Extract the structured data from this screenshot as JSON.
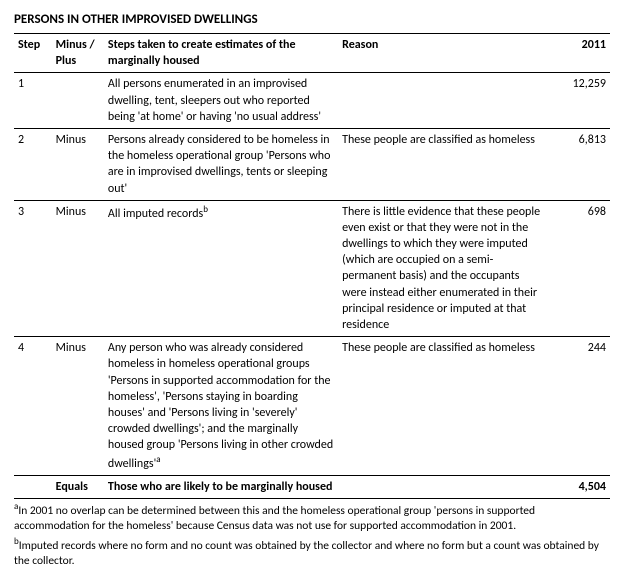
{
  "title": "PERSONS IN OTHER IMPROVISED DWELLINGS",
  "headers": {
    "step": "Step",
    "mp": "Minus / Plus",
    "steps_taken": "Steps taken to create estimates of the marginally housed",
    "reason": "Reason",
    "year": "2011"
  },
  "rows": [
    {
      "step": "1",
      "mp": "",
      "steps_taken": "All persons enumerated in an improvised dwelling, tent, sleepers out who reported being 'at home' or having 'no usual address'",
      "reason": "",
      "year": "12,259"
    },
    {
      "step": "2",
      "mp": "Minus",
      "steps_taken": "Persons already considered to be homeless in the homeless operational group 'Persons who are in improvised dwellings, tents or sleeping out'",
      "reason": "These people are classified as homeless",
      "year": "6,813"
    },
    {
      "step": "3",
      "mp": "Minus",
      "steps_taken": "All imputed records",
      "steps_taken_sup": "b",
      "reason": "There is little evidence that these people even exist or that they were not in the dwellings to which they were imputed (which are occupied on a semi-permanent basis) and the occupants were instead either enumerated in their principal residence or imputed at that residence",
      "year": "698"
    },
    {
      "step": "4",
      "mp": "Minus",
      "steps_taken": "Any person who was already considered homeless in homeless operational groups 'Persons in supported accommodation for the homeless', 'Persons staying in boarding houses' and 'Persons living in 'severely' crowded dwellings'; and the marginally housed group 'Persons living in other crowded dwellings'",
      "steps_taken_sup": "a",
      "reason": "These people are classified as homeless",
      "year": "244"
    }
  ],
  "total": {
    "mp": "Equals",
    "steps_taken": "Those who are likely to be marginally housed",
    "year": "4,504"
  },
  "footnotes": {
    "a_sup": "a",
    "a": "In 2001 no overlap can be determined between this and the homeless operational group 'persons in supported accommodation for the homeless' because Census data was not use for supported accommodation in 2001.",
    "b_sup": "b",
    "b": "Imputed records where no form and no count was obtained by the collector and where no form but a count was obtained by the collector."
  }
}
